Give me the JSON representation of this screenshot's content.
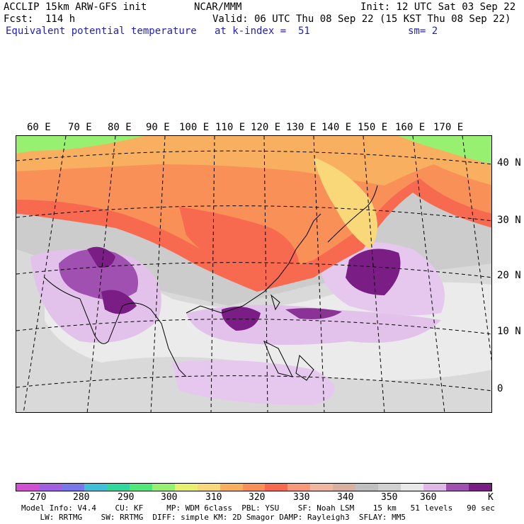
{
  "header": {
    "model": "ACCLIP 15km ARW-GFS init",
    "org": "NCAR/MMM",
    "init": "Init: 12 UTC Sat 03 Sep 22",
    "fcst": "Fcst:  114 h",
    "valid": "Valid: 06 UTC Thu 08 Sep 22 (15 KST Thu 08 Sep 22)",
    "field": "Equivalent potential temperature",
    "level": "at k-index =  51",
    "smooth": "sm= 2"
  },
  "map": {
    "lon_labels": [
      "60 E",
      "70 E",
      "80 E",
      "90 E",
      "100 E",
      "110 E",
      "120 E",
      "130 E",
      "140 E",
      "150 E",
      "160 E",
      "170 E"
    ],
    "lat_labels": [
      "40 N",
      "30 N",
      "20 N",
      "10 N",
      "0"
    ]
  },
  "colorbar": {
    "unit": "K",
    "tick_labels": [
      "270",
      "280",
      "290",
      "300",
      "310",
      "320",
      "330",
      "340",
      "350",
      "360"
    ],
    "colors": [
      "#d050d0",
      "#a060e0",
      "#7878e8",
      "#40c0d8",
      "#30d8a0",
      "#50e878",
      "#98f070",
      "#e8f070",
      "#f8d878",
      "#f8b060",
      "#f89058",
      "#f86a50",
      "#f89878",
      "#f0b8a0",
      "#d8b0a0",
      "#c0c0c0",
      "#d0d0d0",
      "#e8e8e8",
      "#e0b8e8",
      "#a050b0",
      "#7a1e86"
    ]
  },
  "footer": {
    "line1": "Model Info: V4.4    CU: KF     MP: WDM 6class  PBL: YSU    SF: Noah LSM    15 km   51 levels   90 sec",
    "line2": "    LW: RRTMG    SW: RRTMG  DIFF: simple KM: 2D Smagor DAMP: Rayleigh3  SFLAY: MM5"
  }
}
